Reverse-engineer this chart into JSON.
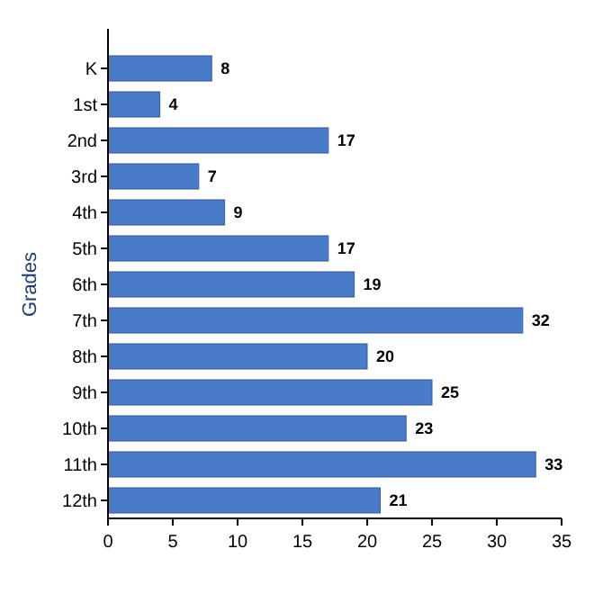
{
  "chart_data": {
    "type": "bar",
    "orientation": "horizontal",
    "ylabel": "Grades",
    "categories": [
      "K",
      "1st",
      "2nd",
      "3rd",
      "4th",
      "5th",
      "6th",
      "7th",
      "8th",
      "9th",
      "10th",
      "11th",
      "12th"
    ],
    "values": [
      8,
      4,
      17,
      7,
      9,
      17,
      19,
      32,
      20,
      25,
      23,
      33,
      21
    ],
    "color": "#4a7bc8",
    "xlim": [
      0,
      35
    ],
    "xticks": [
      0,
      5,
      10,
      15,
      20,
      25,
      30,
      35
    ],
    "data_labels": true,
    "grid": false
  }
}
